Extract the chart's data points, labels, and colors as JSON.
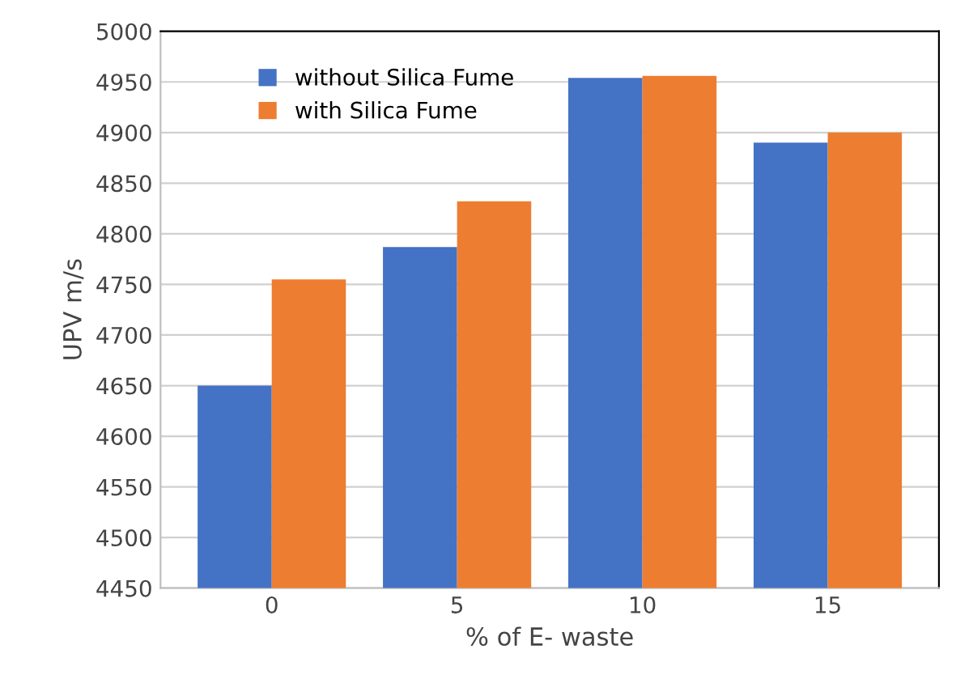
{
  "chart_data": {
    "type": "bar",
    "xlabel": "% of E- waste",
    "ylabel": "UPV m/s",
    "categories": [
      "0",
      "5",
      "10",
      "15"
    ],
    "series": [
      {
        "name": "without Silica Fume",
        "color": "#4472c4",
        "values": [
          4650,
          4787,
          4954,
          4890
        ]
      },
      {
        "name": "with Silica Fume",
        "color": "#ed7d31",
        "values": [
          4755,
          4832,
          4956,
          4900
        ]
      }
    ],
    "ylim": [
      4450,
      5000
    ],
    "yticks": [
      4450,
      4500,
      4550,
      4600,
      4650,
      4700,
      4750,
      4800,
      4850,
      4900,
      4950,
      5000
    ],
    "grid": "y",
    "legend": "top left"
  }
}
